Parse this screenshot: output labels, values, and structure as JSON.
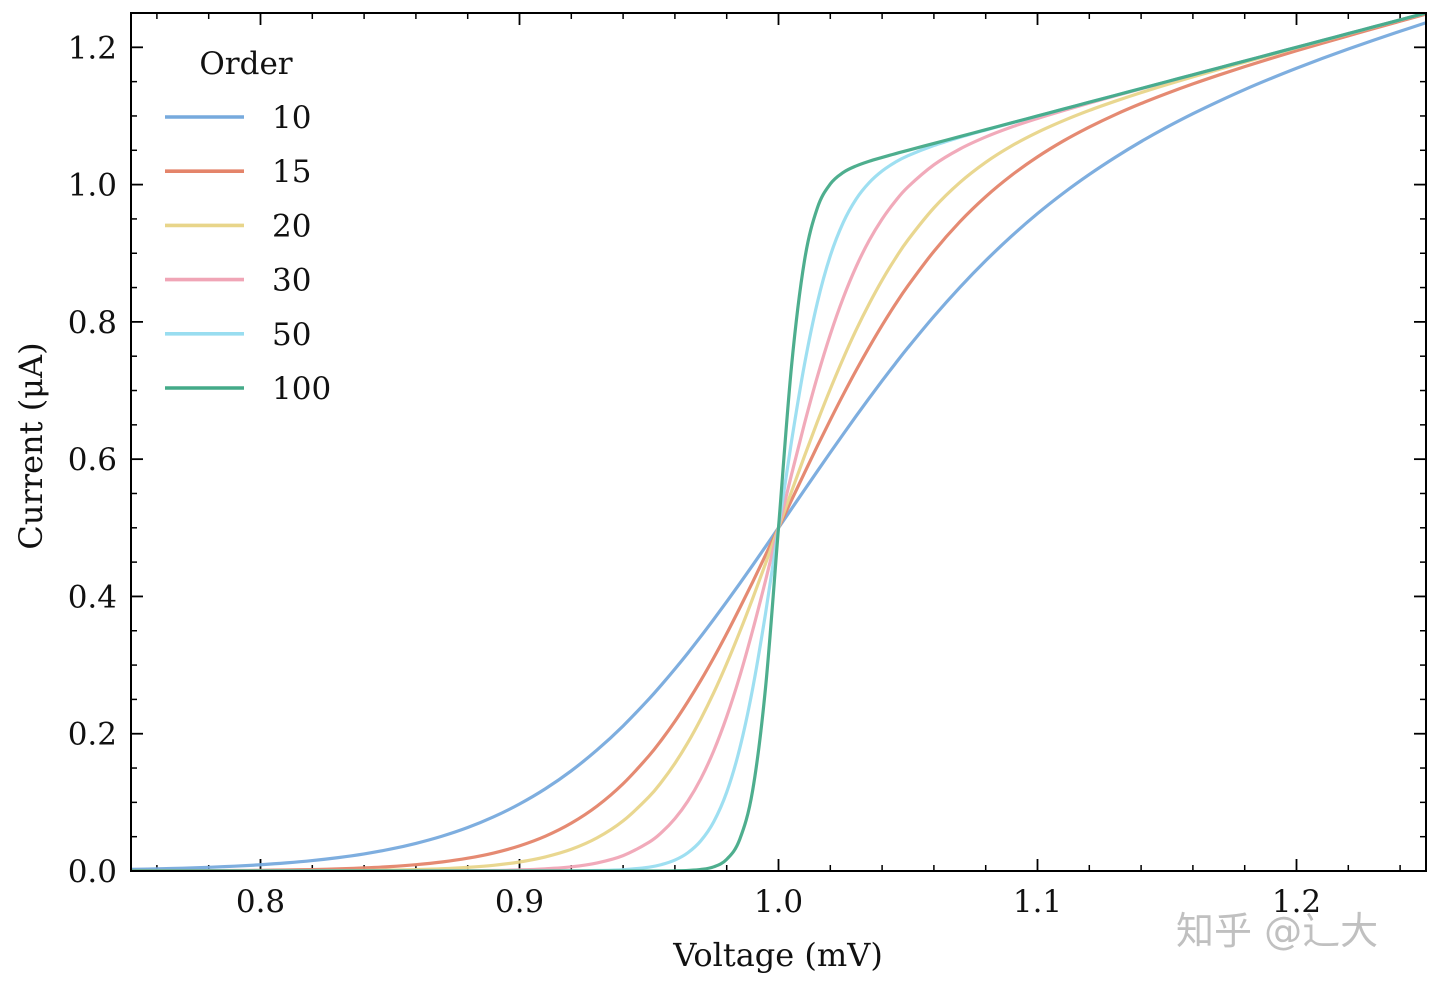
{
  "chart_data": {
    "type": "line",
    "title": "",
    "xlabel": "Voltage (mV)",
    "ylabel": "Current (μA)",
    "xlim": [
      0.75,
      1.25
    ],
    "ylim": [
      0.0,
      1.25
    ],
    "xticks": [
      0.8,
      0.9,
      1.0,
      1.1,
      1.2
    ],
    "xtick_labels": [
      "0.8",
      "0.9",
      "1.0",
      "1.1",
      "1.2"
    ],
    "xminor_step": 0.02,
    "yticks": [
      0.0,
      0.2,
      0.4,
      0.6,
      0.8,
      1.0,
      1.2
    ],
    "ytick_labels": [
      "0.0",
      "0.2",
      "0.4",
      "0.6",
      "0.8",
      "1.0",
      "1.2"
    ],
    "yminor_step": 0.05,
    "grid": false,
    "legend": {
      "title": "Order",
      "placement": "top-left"
    },
    "x": [
      0.75,
      0.76,
      0.77,
      0.78,
      0.79,
      0.8,
      0.81,
      0.82,
      0.83,
      0.84,
      0.85,
      0.86,
      0.87,
      0.88,
      0.89,
      0.9,
      0.91,
      0.92,
      0.93,
      0.94,
      0.95,
      0.955,
      0.96,
      0.965,
      0.97,
      0.975,
      0.98,
      0.985,
      0.99,
      0.995,
      1.0,
      1.005,
      1.01,
      1.015,
      1.02,
      1.025,
      1.03,
      1.035,
      1.04,
      1.045,
      1.05,
      1.06,
      1.07,
      1.08,
      1.09,
      1.1,
      1.11,
      1.12,
      1.13,
      1.14,
      1.15,
      1.16,
      1.17,
      1.18,
      1.19,
      1.2,
      1.21,
      1.22,
      1.23,
      1.24,
      1.25
    ],
    "series": [
      {
        "name": "10",
        "color": "#77AADD",
        "values": [
          0.0024,
          0.0031,
          0.0041,
          0.0054,
          0.007,
          0.0091,
          0.0118,
          0.0152,
          0.0195,
          0.0249,
          0.0317,
          0.0402,
          0.0506,
          0.0633,
          0.0789,
          0.0976,
          0.1198,
          0.146,
          0.1765,
          0.2113,
          0.2507,
          0.272,
          0.2943,
          0.3175,
          0.3417,
          0.3667,
          0.3923,
          0.4186,
          0.4454,
          0.4726,
          0.5,
          0.5275,
          0.5551,
          0.5825,
          0.6097,
          0.6365,
          0.6629,
          0.6888,
          0.7141,
          0.7387,
          0.7626,
          0.808,
          0.8502,
          0.8892,
          0.925,
          0.9578,
          0.9876,
          1.0148,
          1.0397,
          1.0627,
          1.0838,
          1.1033,
          1.1214,
          1.1385,
          1.1544,
          1.1695,
          1.1839,
          1.1976,
          1.2107,
          1.2234,
          1.2358
        ]
      },
      {
        "name": "15",
        "color": "#E4846A",
        "values": [
          0.0001,
          0.0002,
          0.0003,
          0.0005,
          0.0007,
          0.001,
          0.0015,
          0.0021,
          0.0031,
          0.0045,
          0.0064,
          0.0092,
          0.0131,
          0.0186,
          0.0262,
          0.0366,
          0.0507,
          0.0697,
          0.0947,
          0.1271,
          0.1679,
          0.1918,
          0.218,
          0.2468,
          0.2776,
          0.3107,
          0.3458,
          0.3828,
          0.4208,
          0.4602,
          0.5,
          0.5401,
          0.5798,
          0.6191,
          0.6572,
          0.6941,
          0.7295,
          0.7631,
          0.795,
          0.8249,
          0.8527,
          0.9028,
          0.9458,
          0.9824,
          1.0136,
          1.0404,
          1.0636,
          1.0838,
          1.1019,
          1.1181,
          1.1329,
          1.1467,
          1.1596,
          1.1719,
          1.1836,
          1.195,
          1.206,
          1.2168,
          1.2275,
          1.238,
          1.2485
        ]
      },
      {
        "name": "20",
        "color": "#E8D58A",
        "values": [
          0.0,
          0.0,
          0.0,
          0.0,
          0.0001,
          0.0001,
          0.0002,
          0.0003,
          0.0005,
          0.0008,
          0.0013,
          0.0021,
          0.0033,
          0.0053,
          0.0083,
          0.0131,
          0.0205,
          0.0316,
          0.0484,
          0.073,
          0.1082,
          0.1306,
          0.1568,
          0.1871,
          0.2215,
          0.2597,
          0.3021,
          0.3481,
          0.3968,
          0.4479,
          0.5,
          0.5525,
          0.6042,
          0.6544,
          0.7021,
          0.7469,
          0.7884,
          0.8262,
          0.8607,
          0.8917,
          0.9195,
          0.9661,
          1.003,
          1.0325,
          1.0564,
          1.0762,
          1.0931,
          1.1081,
          1.1215,
          1.134,
          1.1457,
          1.157,
          1.1678,
          1.1784,
          1.1888,
          1.1992,
          1.2094,
          1.2195,
          1.2297,
          1.2398,
          1.2499
        ]
      },
      {
        "name": "30",
        "color": "#F0A5B6",
        "values": [
          0.0,
          0.0,
          0.0,
          0.0,
          0.0,
          0.0,
          0.0,
          0.0,
          0.0,
          0.0,
          0.0,
          0.0001,
          0.0002,
          0.0004,
          0.0008,
          0.0016,
          0.0032,
          0.0061,
          0.0118,
          0.0224,
          0.0419,
          0.0567,
          0.0763,
          0.1018,
          0.1343,
          0.1751,
          0.2248,
          0.2833,
          0.3502,
          0.4232,
          0.5,
          0.5772,
          0.6514,
          0.7202,
          0.7817,
          0.8351,
          0.8806,
          0.9185,
          0.9497,
          0.9754,
          0.9967,
          1.0288,
          1.0518,
          1.0694,
          1.0839,
          1.0964,
          1.1079,
          1.1188,
          1.1293,
          1.1396,
          1.1498,
          1.1599,
          1.17,
          1.18,
          1.19,
          1.2,
          1.21,
          1.22,
          1.23,
          1.24,
          1.25
        ]
      },
      {
        "name": "50",
        "color": "#99DDF0",
        "values": [
          0.0,
          0.0,
          0.0,
          0.0,
          0.0,
          0.0,
          0.0,
          0.0,
          0.0,
          0.0,
          0.0,
          0.0,
          0.0,
          0.0,
          0.0,
          0.0,
          0.0001,
          0.0002,
          0.0007,
          0.0019,
          0.0056,
          0.0095,
          0.0159,
          0.0266,
          0.044,
          0.0718,
          0.1148,
          0.1781,
          0.2653,
          0.3754,
          0.5,
          0.6253,
          0.7374,
          0.8281,
          0.8963,
          0.9449,
          0.9791,
          1.0028,
          1.0198,
          1.0324,
          1.0421,
          1.0569,
          1.0688,
          1.0795,
          1.0898,
          1.0999,
          1.11,
          1.12,
          1.13,
          1.14,
          1.15,
          1.16,
          1.17,
          1.18,
          1.19,
          1.2,
          1.21,
          1.22,
          1.23,
          1.24,
          1.25
        ]
      },
      {
        "name": "100",
        "color": "#44AA88",
        "values": [
          0.0,
          0.0,
          0.0,
          0.0,
          0.0,
          0.0,
          0.0,
          0.0,
          0.0,
          0.0,
          0.0,
          0.0,
          0.0,
          0.0,
          0.0,
          0.0,
          0.0,
          0.0,
          0.0,
          0.0,
          0.0,
          0.0,
          0.0003,
          0.0008,
          0.0022,
          0.0061,
          0.017,
          0.0458,
          0.1169,
          0.2672,
          0.5,
          0.7344,
          0.8885,
          0.9659,
          1.0009,
          1.0177,
          1.0272,
          1.034,
          1.0396,
          1.0449,
          1.05,
          1.06,
          1.07,
          1.08,
          1.09,
          1.1,
          1.11,
          1.12,
          1.13,
          1.14,
          1.15,
          1.16,
          1.17,
          1.18,
          1.19,
          1.2,
          1.21,
          1.22,
          1.23,
          1.24,
          1.25
        ]
      }
    ]
  },
  "watermark": "知乎 @辶大"
}
